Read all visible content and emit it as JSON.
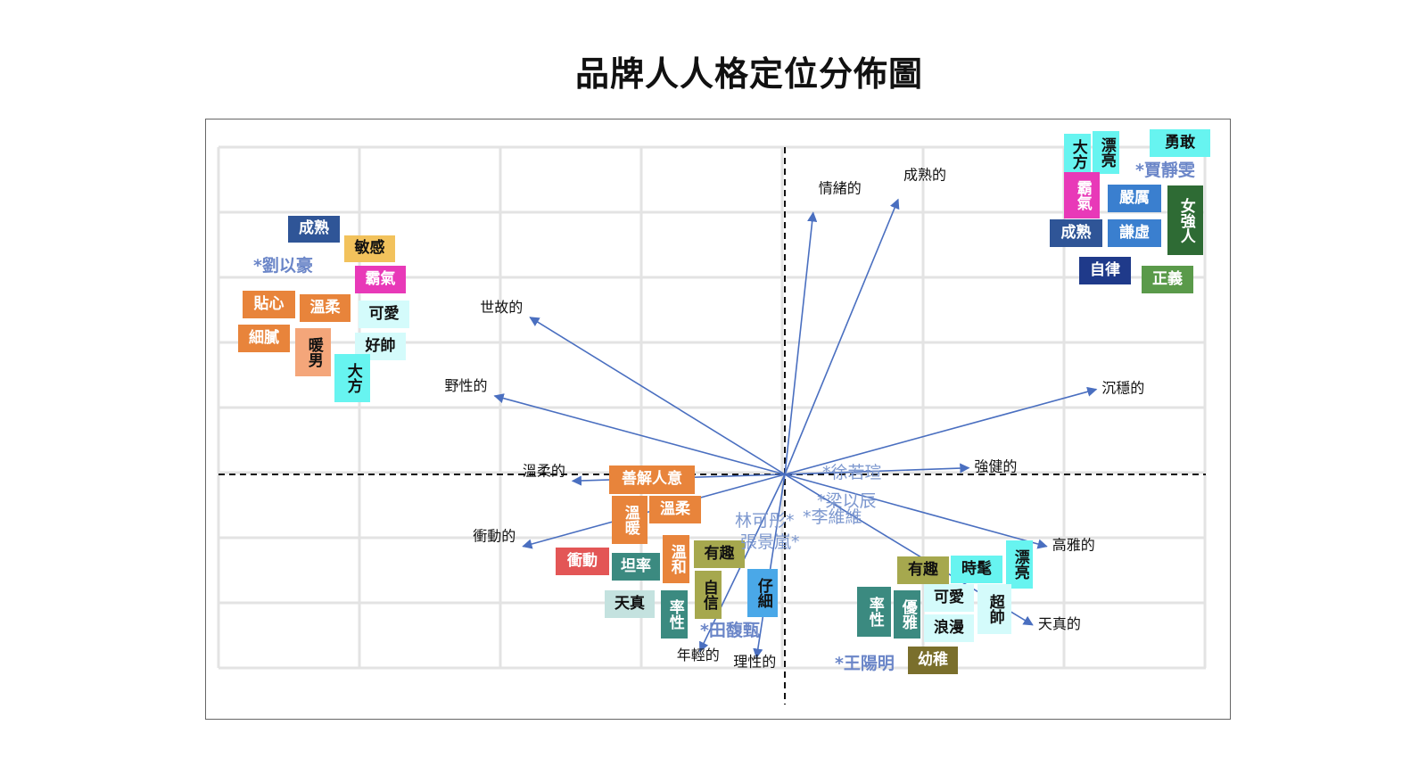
{
  "chart_data": {
    "type": "scatter",
    "title": "品牌人人格定位分佈圖",
    "vectors": [
      {
        "label": "情緒的",
        "x": 0.4,
        "y": 4.0
      },
      {
        "label": "成熟的",
        "x": 1.6,
        "y": 4.2
      },
      {
        "label": "世故的",
        "x": -3.6,
        "y": 2.4
      },
      {
        "label": "野性的",
        "x": -4.1,
        "y": 1.2
      },
      {
        "label": "沉穩的",
        "x": 4.4,
        "y": 1.3
      },
      {
        "label": "強健的",
        "x": 2.6,
        "y": 0.1
      },
      {
        "label": "溫柔的",
        "x": -3.0,
        "y": -0.1
      },
      {
        "label": "衝動的",
        "x": -3.7,
        "y": -1.1
      },
      {
        "label": "高雅的",
        "x": 3.7,
        "y": -1.1
      },
      {
        "label": "天真的",
        "x": 3.5,
        "y": -2.3
      },
      {
        "label": "年輕的",
        "x": -1.2,
        "y": -2.7
      },
      {
        "label": "理性的",
        "x": -0.4,
        "y": -2.8
      }
    ],
    "persons": [
      {
        "name": "*劉以豪",
        "x": -7.3,
        "y": 3.3
      },
      {
        "name": "*賈靜雯",
        "x": 5.4,
        "y": 4.7
      },
      {
        "name": "*徐若瑄",
        "x": 0.9,
        "y": 0.0
      },
      {
        "name": "*梁以辰",
        "x": 0.9,
        "y": -0.4
      },
      {
        "name": "*李維維",
        "x": 0.7,
        "y": -0.6
      },
      {
        "name": "林可彤*",
        "x": -0.6,
        "y": -0.7
      },
      {
        "name": "張景嵐*",
        "x": -0.4,
        "y": -1.0
      },
      {
        "name": "*田馥甄",
        "x": -1.0,
        "y": -2.4
      },
      {
        "name": "*王陽明",
        "x": 1.2,
        "y": -2.9
      }
    ],
    "traits": [
      {
        "text": "成熟",
        "color": "#2f5597"
      },
      {
        "text": "敏感",
        "color": "#f2c25c"
      },
      {
        "text": "霸氣",
        "color": "#e839b8"
      },
      {
        "text": "貼心",
        "color": "#e8843b"
      },
      {
        "text": "溫柔",
        "color": "#e8843b"
      },
      {
        "text": "可愛",
        "color": "#d4fbfb"
      },
      {
        "text": "細膩",
        "color": "#e8843b"
      },
      {
        "text": "暖男",
        "color": "#f4a67a"
      },
      {
        "text": "好帥",
        "color": "#d4fbfb"
      },
      {
        "text": "大方",
        "color": "#67f4f0"
      },
      {
        "text": "大方",
        "color": "#67f4f0"
      },
      {
        "text": "漂亮",
        "color": "#67f4f0"
      },
      {
        "text": "勇敢",
        "color": "#67f4f0"
      },
      {
        "text": "霸氣",
        "color": "#e839b8"
      },
      {
        "text": "嚴厲",
        "color": "#3a7fcf"
      },
      {
        "text": "女強人",
        "color": "#2e6b34"
      },
      {
        "text": "成熟",
        "color": "#2f5597"
      },
      {
        "text": "謙虛",
        "color": "#3a7fcf"
      },
      {
        "text": "自律",
        "color": "#1f3a8a"
      },
      {
        "text": "正義",
        "color": "#5a9a4a"
      },
      {
        "text": "善解人意",
        "color": "#e8843b"
      },
      {
        "text": "溫暖",
        "color": "#e8843b"
      },
      {
        "text": "溫柔",
        "color": "#e8843b"
      },
      {
        "text": "溫和",
        "color": "#e8843b"
      },
      {
        "text": "有趣",
        "color": "#a6a84e"
      },
      {
        "text": "衝動",
        "color": "#e35656"
      },
      {
        "text": "坦率",
        "color": "#3b8a80"
      },
      {
        "text": "自信",
        "color": "#a6a84e"
      },
      {
        "text": "仔細",
        "color": "#4aa8e8"
      },
      {
        "text": "天真",
        "color": "#c4e2df"
      },
      {
        "text": "率性",
        "color": "#3b8a80"
      },
      {
        "text": "有趣",
        "color": "#a6a84e"
      },
      {
        "text": "時髦",
        "color": "#67f4f0"
      },
      {
        "text": "漂亮",
        "color": "#67f4f0"
      },
      {
        "text": "率性",
        "color": "#3b8a80"
      },
      {
        "text": "優雅",
        "color": "#3b8a80"
      },
      {
        "text": "可愛",
        "color": "#d4fbfb"
      },
      {
        "text": "超帥",
        "color": "#d4fbfb"
      },
      {
        "text": "浪漫",
        "color": "#d4fbfb"
      },
      {
        "text": "幼稚",
        "color": "#7a6f2c"
      }
    ],
    "xlim": [
      -8,
      6
    ],
    "ylim": [
      -3.5,
      5
    ],
    "grid": true,
    "axes": "dashed-center"
  }
}
